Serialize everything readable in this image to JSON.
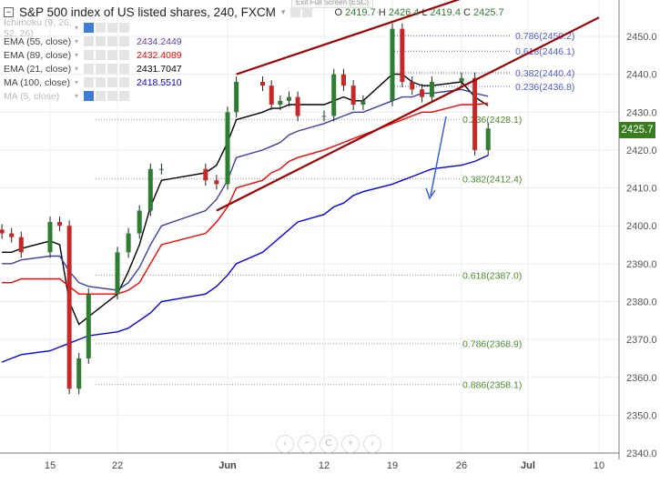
{
  "header": {
    "title": "S&P 500 index of US listed shares, 240, FXCM",
    "exit_fullscreen": "Exit Full Screen (ESC)",
    "ohlc": {
      "o_label": "O",
      "o": "2419.7",
      "h_label": "H",
      "h": "2426.4",
      "l_label": "L",
      "l": "2419.4",
      "c_label": "C",
      "c": "2425.7"
    }
  },
  "indicators": [
    {
      "name": "Ichimoku (9, 26, 52, 26)",
      "value": "",
      "color": "#bbbbbb",
      "hidden": true
    },
    {
      "name": "EMA (55, close)",
      "value": "2434.2449",
      "color": "#5b3fbf"
    },
    {
      "name": "EMA (89, close)",
      "value": "2432.4089",
      "color": "#ff0000"
    },
    {
      "name": "EMA (21, close)",
      "value": "2431.7047",
      "color": "#000000"
    },
    {
      "name": "MA (100, close)",
      "value": "2418.5510",
      "color": "#0000ff"
    },
    {
      "name": "MA (5, close)",
      "value": "",
      "color": "#bbbbbb",
      "hidden": true
    }
  ],
  "current_price": "2425.7",
  "nav_buttons": [
    {
      "icon": "chevron-left-icon",
      "glyph": "‹"
    },
    {
      "icon": "zoom-out-icon",
      "glyph": "−"
    },
    {
      "icon": "reset-icon",
      "glyph": "C"
    },
    {
      "icon": "zoom-in-icon",
      "glyph": "+"
    },
    {
      "icon": "chevron-right-icon",
      "glyph": "›"
    }
  ],
  "chart_data": {
    "type": "candlestick",
    "ylim": [
      2340,
      2455
    ],
    "y_ticks": [
      "2450.0",
      "2440.0",
      "2430.0",
      "2420.0",
      "2410.0",
      "2400.0",
      "2390.0",
      "2380.0",
      "2370.0",
      "2360.0",
      "2350.0",
      "2340.0"
    ],
    "x_ticks": [
      "15",
      "22",
      "Jun",
      "12",
      "19",
      "26",
      "Jul",
      "10"
    ],
    "grid": true,
    "colors": {
      "up": "#2e7d32",
      "down": "#c62828",
      "trendline": "#a00000",
      "fib_green": "#4a8a2a",
      "fib_blue": "#4d5be0",
      "arrow": "#3b5fd8"
    },
    "dates": [
      "05-10",
      "05-11",
      "05-12",
      "05-15",
      "05-16",
      "05-17",
      "05-18",
      "05-19",
      "05-22",
      "05-23",
      "05-24",
      "05-25",
      "05-26",
      "05-30",
      "05-31",
      "06-01",
      "06-02",
      "06-05",
      "06-06",
      "06-07",
      "06-08",
      "06-09",
      "06-12",
      "06-13",
      "06-14",
      "06-15",
      "06-16",
      "06-19",
      "06-20",
      "06-21",
      "06-22",
      "06-23",
      "06-26",
      "06-27",
      "06-28"
    ],
    "close": [
      2398,
      2397,
      2393,
      2401,
      2400,
      2357,
      2365,
      2382,
      2393,
      2398,
      2404,
      2415,
      2415,
      2412,
      2411,
      2430,
      2438,
      2437,
      2432,
      2433,
      2434,
      2429,
      2429,
      2440,
      2437,
      2432,
      2433,
      2452,
      2438,
      2436,
      2434,
      2438,
      2439,
      2420,
      2425.7
    ],
    "series": [
      {
        "name": "EMA (21, close)",
        "color": "#000000",
        "values": [
          2393,
          2393,
          2394,
          2396,
          2395,
          2380,
          2374,
          2376,
          2382,
          2388,
          2395,
          2405,
          2412,
          2414,
          2416,
          2422,
          2428,
          2430,
          2431,
          2431,
          2432,
          2432,
          2432,
          2433,
          2434,
          2433,
          2433,
          2440,
          2440,
          2438,
          2437,
          2437,
          2438,
          2434,
          2431.7
        ]
      },
      {
        "name": "EMA (55, close)",
        "color": "#3b3fa8",
        "values": [
          2390,
          2390,
          2391,
          2392,
          2392,
          2388,
          2385,
          2384,
          2383,
          2385,
          2389,
          2395,
          2400,
          2404,
          2407,
          2412,
          2418,
          2420,
          2421,
          2422,
          2424,
          2425,
          2427,
          2428,
          2429,
          2430,
          2430,
          2433,
          2434,
          2434,
          2435,
          2435,
          2436,
          2435,
          2434.2
        ]
      },
      {
        "name": "EMA (89, close)",
        "color": "#ff0000",
        "values": [
          2385,
          2385,
          2386,
          2386,
          2386,
          2384,
          2382,
          2382,
          2382,
          2383,
          2385,
          2390,
          2395,
          2398,
          2401,
          2405,
          2410,
          2412,
          2414,
          2415,
          2417,
          2418,
          2420,
          2421,
          2422,
          2423,
          2424,
          2427,
          2428,
          2429,
          2430,
          2430,
          2432,
          2432,
          2432.4
        ]
      },
      {
        "name": "MA (100, close)",
        "color": "#0000ff",
        "values": [
          2364,
          2365,
          2366,
          2367,
          2368,
          2369,
          2370,
          2371,
          2372,
          2373,
          2375,
          2377,
          2380,
          2382,
          2384,
          2387,
          2390,
          2393,
          2395,
          2397,
          2399,
          2401,
          2403,
          2405,
          2406,
          2408,
          2409,
          2411,
          2412,
          2413,
          2414,
          2415,
          2416,
          2417,
          2418.6
        ]
      }
    ],
    "trendlines": [
      {
        "from": [
          "06-02",
          2440
        ],
        "to": [
          "06-26",
          2460
        ]
      },
      {
        "from": [
          "05-31",
          2404
        ],
        "to": [
          "07-10",
          2455
        ]
      }
    ],
    "fib_levels_green": [
      {
        "label": "0.236(2428.1)",
        "value": 2428.1
      },
      {
        "label": "0.382(2412.4)",
        "value": 2412.4
      },
      {
        "label": "0.618(2387.0)",
        "value": 2387.0
      },
      {
        "label": "0.786(2368.9)",
        "value": 2368.9
      },
      {
        "label": "0.886(2358.1)",
        "value": 2358.1
      }
    ],
    "fib_levels_blue": [
      {
        "label": "0.786(2450.2)",
        "value": 2450.2
      },
      {
        "label": "0.618(2446.1)",
        "value": 2446.1
      },
      {
        "label": "0.382(2440.4)",
        "value": 2440.4
      },
      {
        "label": "0.236(2436.8)",
        "value": 2436.8
      }
    ]
  }
}
